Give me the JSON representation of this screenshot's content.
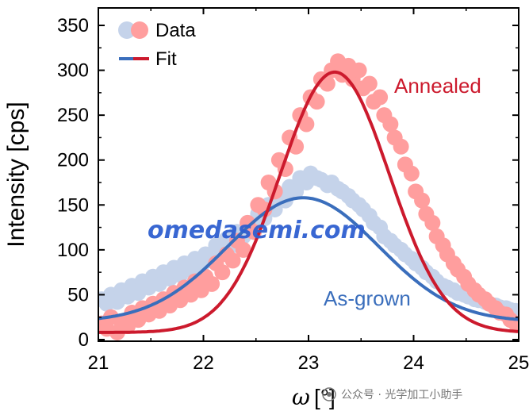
{
  "chart_data": {
    "type": "scatter",
    "xlabel_symbol": "ω",
    "xlabel_unit": "[°]",
    "ylabel": "Intensity [cps]",
    "xlim": [
      21,
      25
    ],
    "ylim": [
      0,
      360
    ],
    "xticks": [
      "21",
      "22",
      "23",
      "24",
      "25"
    ],
    "yticks": [
      "0",
      "50",
      "100",
      "150",
      "200",
      "250",
      "300",
      "350"
    ],
    "legend": {
      "placement": "top-left",
      "data_label": "Data",
      "fit_label": "Fit"
    },
    "series": [
      {
        "name": "Annealed",
        "color": "#cc1a2d",
        "data_color": "#ff9e9e",
        "fit": {
          "amplitude": 290,
          "center": 23.25,
          "sigma": 0.52,
          "baseline": 8
        },
        "points": [
          [
            21.03,
            18
          ],
          [
            21.08,
            12
          ],
          [
            21.12,
            25
          ],
          [
            21.18,
            8
          ],
          [
            21.22,
            20
          ],
          [
            21.28,
            15
          ],
          [
            21.32,
            30
          ],
          [
            21.38,
            22
          ],
          [
            21.42,
            35
          ],
          [
            21.48,
            28
          ],
          [
            21.52,
            40
          ],
          [
            21.58,
            32
          ],
          [
            21.62,
            45
          ],
          [
            21.68,
            38
          ],
          [
            21.72,
            52
          ],
          [
            21.78,
            44
          ],
          [
            21.82,
            58
          ],
          [
            21.88,
            50
          ],
          [
            21.92,
            65
          ],
          [
            21.98,
            55
          ],
          [
            22.02,
            70
          ],
          [
            22.08,
            62
          ],
          [
            22.12,
            85
          ],
          [
            22.18,
            75
          ],
          [
            22.22,
            95
          ],
          [
            22.28,
            88
          ],
          [
            22.32,
            110
          ],
          [
            22.38,
            100
          ],
          [
            22.42,
            130
          ],
          [
            22.48,
            120
          ],
          [
            22.52,
            150
          ],
          [
            22.58,
            145
          ],
          [
            22.62,
            175
          ],
          [
            22.68,
            165
          ],
          [
            22.72,
            200
          ],
          [
            22.78,
            190
          ],
          [
            22.82,
            225
          ],
          [
            22.88,
            215
          ],
          [
            22.92,
            250
          ],
          [
            22.98,
            240
          ],
          [
            23.02,
            270
          ],
          [
            23.08,
            265
          ],
          [
            23.12,
            290
          ],
          [
            23.18,
            285
          ],
          [
            23.22,
            300
          ],
          [
            23.28,
            310
          ],
          [
            23.32,
            295
          ],
          [
            23.38,
            305
          ],
          [
            23.42,
            290
          ],
          [
            23.48,
            300
          ],
          [
            23.52,
            280
          ],
          [
            23.58,
            285
          ],
          [
            23.62,
            265
          ],
          [
            23.68,
            270
          ],
          [
            23.72,
            250
          ],
          [
            23.78,
            240
          ],
          [
            23.82,
            225
          ],
          [
            23.88,
            215
          ],
          [
            23.92,
            195
          ],
          [
            23.98,
            185
          ],
          [
            24.02,
            165
          ],
          [
            24.08,
            155
          ],
          [
            24.12,
            140
          ],
          [
            24.18,
            130
          ],
          [
            24.22,
            115
          ],
          [
            24.28,
            105
          ],
          [
            24.32,
            95
          ],
          [
            24.38,
            85
          ],
          [
            24.42,
            78
          ],
          [
            24.48,
            70
          ],
          [
            24.52,
            62
          ],
          [
            24.58,
            55
          ],
          [
            24.62,
            50
          ],
          [
            24.68,
            45
          ],
          [
            24.72,
            40
          ],
          [
            24.78,
            35
          ],
          [
            24.82,
            30
          ],
          [
            24.88,
            28
          ],
          [
            24.92,
            22
          ],
          [
            24.97,
            18
          ]
        ]
      },
      {
        "name": "As-grown",
        "color": "#3a6ebc",
        "data_color": "#c5d3ea",
        "fit": {
          "amplitude": 138,
          "center": 22.95,
          "sigma": 0.72,
          "baseline": 20
        },
        "points": [
          [
            21.03,
            45
          ],
          [
            21.08,
            40
          ],
          [
            21.12,
            50
          ],
          [
            21.18,
            42
          ],
          [
            21.22,
            55
          ],
          [
            21.28,
            48
          ],
          [
            21.32,
            60
          ],
          [
            21.38,
            52
          ],
          [
            21.42,
            65
          ],
          [
            21.48,
            58
          ],
          [
            21.52,
            70
          ],
          [
            21.58,
            62
          ],
          [
            21.62,
            75
          ],
          [
            21.68,
            68
          ],
          [
            21.72,
            80
          ],
          [
            21.78,
            72
          ],
          [
            21.82,
            85
          ],
          [
            21.88,
            78
          ],
          [
            21.92,
            90
          ],
          [
            21.98,
            82
          ],
          [
            22.02,
            95
          ],
          [
            22.08,
            88
          ],
          [
            22.12,
            105
          ],
          [
            22.18,
            98
          ],
          [
            22.22,
            112
          ],
          [
            22.28,
            105
          ],
          [
            22.32,
            120
          ],
          [
            22.38,
            115
          ],
          [
            22.42,
            130
          ],
          [
            22.48,
            125
          ],
          [
            22.52,
            140
          ],
          [
            22.58,
            135
          ],
          [
            22.62,
            150
          ],
          [
            22.68,
            145
          ],
          [
            22.72,
            160
          ],
          [
            22.78,
            155
          ],
          [
            22.82,
            170
          ],
          [
            22.88,
            165
          ],
          [
            22.92,
            180
          ],
          [
            22.98,
            175
          ],
          [
            23.02,
            185
          ],
          [
            23.08,
            180
          ],
          [
            23.12,
            178
          ],
          [
            23.18,
            172
          ],
          [
            23.22,
            175
          ],
          [
            23.28,
            168
          ],
          [
            23.32,
            165
          ],
          [
            23.38,
            160
          ],
          [
            23.42,
            155
          ],
          [
            23.48,
            150
          ],
          [
            23.52,
            145
          ],
          [
            23.58,
            138
          ],
          [
            23.62,
            130
          ],
          [
            23.68,
            125
          ],
          [
            23.72,
            115
          ],
          [
            23.78,
            110
          ],
          [
            23.82,
            105
          ],
          [
            23.88,
            100
          ],
          [
            23.92,
            95
          ],
          [
            23.98,
            90
          ],
          [
            24.02,
            85
          ],
          [
            24.08,
            80
          ],
          [
            24.12,
            75
          ],
          [
            24.18,
            70
          ],
          [
            24.22,
            65
          ],
          [
            24.28,
            60
          ],
          [
            24.32,
            58
          ],
          [
            24.38,
            55
          ],
          [
            24.42,
            52
          ],
          [
            24.48,
            50
          ],
          [
            24.52,
            48
          ],
          [
            24.58,
            45
          ],
          [
            24.62,
            44
          ],
          [
            24.68,
            42
          ],
          [
            24.72,
            40
          ],
          [
            24.78,
            38
          ],
          [
            24.82,
            36
          ],
          [
            24.88,
            35
          ],
          [
            24.92,
            33
          ],
          [
            24.97,
            32
          ]
        ]
      }
    ],
    "annotations": {
      "annealed_label": "Annealed",
      "asgrown_label": "As-grown"
    }
  },
  "watermark": "omedasemi.com",
  "wechat_caption": "公众号 · 光学加工小助手"
}
